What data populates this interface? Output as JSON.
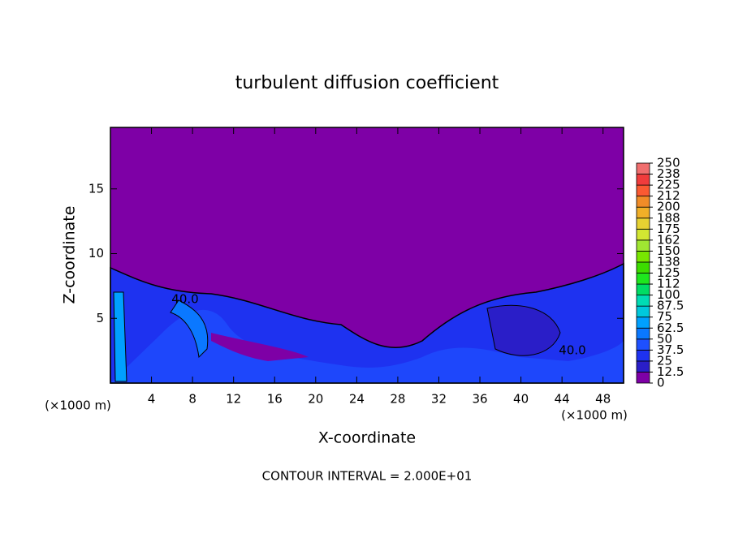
{
  "chart_data": {
    "type": "contour",
    "title": "turbulent diffusion coefficient",
    "xlabel": "X-coordinate",
    "ylabel": "Z-coordinate",
    "x_unit_left": "(×1000 m)",
    "x_unit_right": "(×1000 m)",
    "xlim": [
      0,
      50
    ],
    "xticks": [
      4,
      8,
      12,
      16,
      20,
      24,
      28,
      32,
      36,
      40,
      44,
      48
    ],
    "ylim": [
      0,
      19.75
    ],
    "yticks": [
      5,
      10,
      15
    ],
    "contour_labels": [
      "40.0",
      "40.0"
    ],
    "footer": "CONTOUR INTERVAL = 2.000E+01",
    "colorbar": {
      "levels": [
        0,
        12.5,
        25,
        37.5,
        50,
        62.5,
        75,
        87.5,
        100,
        112,
        125,
        138,
        150,
        162,
        175,
        188,
        200,
        212,
        225,
        238,
        250
      ],
      "colors": [
        "#7e00a6",
        "#2a1ec8",
        "#1e32f0",
        "#1e50ff",
        "#0a78ff",
        "#00a0ff",
        "#00c8dc",
        "#00dcb4",
        "#00dc64",
        "#1ee61e",
        "#3cdc00",
        "#78e600",
        "#a0e632",
        "#d2e632",
        "#e6d232",
        "#f0af28",
        "#f08c28",
        "#fa5a32",
        "#f03c3c",
        "#f06e6e"
      ]
    },
    "field_color": "#7e00a6"
  }
}
